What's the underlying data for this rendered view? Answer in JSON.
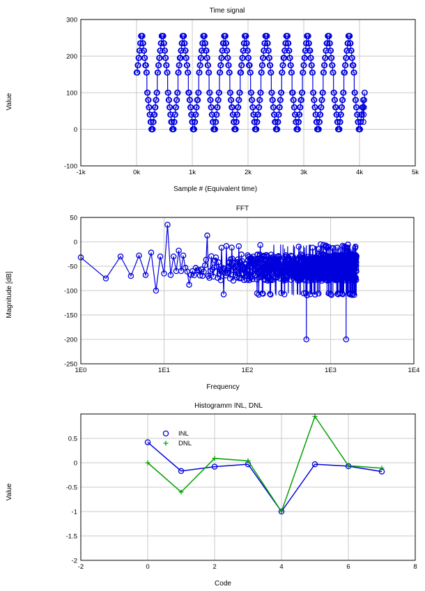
{
  "chart_data": [
    {
      "type": "line",
      "title": "Time signal",
      "xlabel": "Sample # (Equivalent time)",
      "ylabel": "Value",
      "xlim": [
        -1000,
        5000
      ],
      "ylim": [
        -100,
        300
      ],
      "xticks": [
        -1000,
        0,
        1000,
        2000,
        3000,
        4000,
        5000
      ],
      "xtick_labels": [
        "-1k",
        "0k",
        "1k",
        "2k",
        "3k",
        "4k",
        "5k"
      ],
      "yticks": [
        -100,
        0,
        100,
        200,
        300
      ],
      "ytick_labels": [
        "-100",
        "0",
        "100",
        "200",
        "300"
      ],
      "grid": true,
      "color": "#0000dd",
      "series": [
        {
          "name": "signal",
          "description": "periodic 8-bit staircase, 11 periods",
          "sample_count": 4096,
          "period": 372,
          "high_levels": [
            155,
            175,
            195,
            215,
            235,
            255
          ],
          "low_levels": [
            100,
            80,
            60,
            40,
            20,
            0
          ],
          "tail_levels": [
            20,
            40,
            60,
            80,
            100
          ]
        }
      ]
    },
    {
      "type": "line",
      "title": "FFT",
      "xlabel": "Frequency",
      "ylabel": "Magnitude [dB]",
      "xscale": "log",
      "xlim": [
        1,
        10000
      ],
      "ylim": [
        -250,
        50
      ],
      "xticks": [
        1,
        10,
        100,
        1000,
        10000
      ],
      "xtick_labels": [
        "1E0",
        "1E1",
        "1E2",
        "1E3",
        "1E4"
      ],
      "yticks": [
        -250,
        -200,
        -150,
        -100,
        -50,
        0,
        50
      ],
      "ytick_labels": [
        "-250",
        "-200",
        "-150",
        "-100",
        "-50",
        "0",
        "50"
      ],
      "grid": true,
      "color": "#0000dd",
      "series": [
        {
          "name": "spectrum",
          "x_max": 2048,
          "points": [
            [
              1,
              -32
            ],
            [
              2,
              -75
            ],
            [
              3,
              -30
            ],
            [
              4,
              -70
            ],
            [
              5,
              -28
            ],
            [
              6,
              -68
            ],
            [
              7,
              -22
            ],
            [
              8,
              -100
            ],
            [
              9,
              -30
            ],
            [
              10,
              -65
            ],
            [
              11,
              35
            ],
            [
              12,
              -68
            ],
            [
              13,
              -30
            ],
            [
              14,
              -60
            ],
            [
              15,
              -18
            ],
            [
              16,
              -60
            ],
            [
              17,
              -28
            ],
            [
              20,
              -88
            ],
            [
              33,
              13
            ],
            [
              34,
              -70
            ]
          ],
          "spikes": [
            [
              512,
              -200
            ],
            [
              1536,
              -200
            ]
          ],
          "noise_band_db": [
            -105,
            -15
          ]
        }
      ]
    },
    {
      "type": "line",
      "title": "Histogramm INL, DNL",
      "xlabel": "Code",
      "ylabel": "Value",
      "xlim": [
        -2,
        8
      ],
      "ylim": [
        -2,
        1
      ],
      "xticks": [
        -2,
        0,
        2,
        4,
        6,
        8
      ],
      "xtick_labels": [
        "-2",
        "0",
        "2",
        "4",
        "6",
        "8"
      ],
      "yticks": [
        -2,
        -1.5,
        -1,
        -0.5,
        0,
        0.5
      ],
      "ytick_labels": [
        "-2",
        "-1.5",
        "-1",
        "-0.5",
        "0",
        "0.5"
      ],
      "grid": true,
      "legend": "top-left",
      "series": [
        {
          "name": "INL",
          "marker": "o",
          "color": "#0000dd",
          "x": [
            0,
            1,
            2,
            3,
            4,
            5,
            6,
            7
          ],
          "y": [
            0.42,
            -0.17,
            -0.08,
            -0.03,
            -1.0,
            -0.03,
            -0.07,
            -0.18
          ]
        },
        {
          "name": "DNL",
          "marker": "+",
          "color": "#00a000",
          "x": [
            0,
            1,
            2,
            3,
            4,
            5,
            6,
            7
          ],
          "y": [
            0.0,
            -0.6,
            0.09,
            0.04,
            -1.0,
            0.95,
            -0.06,
            -0.11
          ]
        }
      ]
    }
  ]
}
